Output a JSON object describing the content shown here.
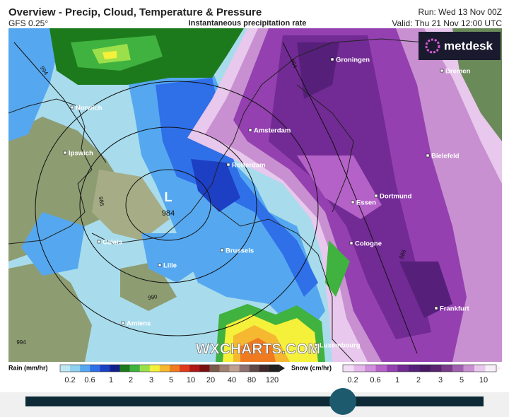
{
  "header": {
    "title": "Overview - Precip, Cloud, Temperature & Pressure",
    "model": "GFS 0.25°",
    "layer": "Instantaneous precipitation rate",
    "run": "Run: Wed 13 Nov 00Z",
    "valid": "Valid: Thu 21 Nov 12:00 UTC"
  },
  "logo": "metdesk",
  "watermark": "WXCHARTS.COM",
  "map": {
    "low": {
      "symbol": "L",
      "pressure": "984"
    },
    "isobar_labels": [
      "994",
      "986",
      "990",
      "994",
      "986",
      "994"
    ],
    "cities": [
      "Groningen",
      "Bremen",
      "Norwich",
      "Amsterdam",
      "Ipswich",
      "Bielefeld",
      "Rotterdam",
      "Dortmund",
      "Essen",
      "Calais",
      "Cologne",
      "Brussels",
      "Lille",
      "Frankfurt",
      "Amiens",
      "Luxembourg"
    ]
  },
  "legend": {
    "rain": {
      "title": "Rain (mm/hr)",
      "ticks": [
        0.2,
        0.6,
        1,
        2,
        3,
        5,
        10,
        20,
        40,
        80,
        120
      ],
      "colors": [
        "#bfe8f5",
        "#8fd0ef",
        "#55a8f0",
        "#2f6fe8",
        "#1d3fc4",
        "#12208a",
        "#1c7a1c",
        "#3fb23f",
        "#9be04a",
        "#f5f03a",
        "#f5b830",
        "#f07a20",
        "#e03a1a",
        "#b01818",
        "#7a1010",
        "#7a5a4a",
        "#a08070",
        "#c0a090",
        "#907070",
        "#604848",
        "#402828",
        "#202020"
      ]
    },
    "snow": {
      "title": "Snow (cm/hr)",
      "ticks": [
        0.2,
        0.6,
        1,
        2,
        3,
        5,
        10
      ],
      "colors": [
        "#f3dff5",
        "#e4b8ea",
        "#cf8fdc",
        "#b462c8",
        "#9440b0",
        "#722a94",
        "#56207a",
        "#4a1a66",
        "#5a2470",
        "#7a3a8a",
        "#a060b0",
        "#c890d0",
        "#e8c8ec",
        "#f8eef8"
      ]
    }
  }
}
